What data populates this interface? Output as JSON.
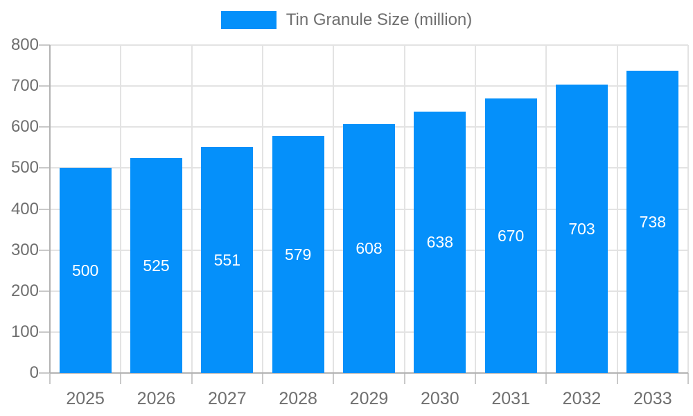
{
  "chart_data": {
    "type": "bar",
    "title": "",
    "legend": {
      "label": "Tin Granule Size (million)",
      "position": "top"
    },
    "categories": [
      "2025",
      "2026",
      "2027",
      "2028",
      "2029",
      "2030",
      "2031",
      "2032",
      "2033"
    ],
    "series": [
      {
        "name": "Tin Granule Size (million)",
        "values": [
          500,
          525,
          551,
          579,
          608,
          638,
          670,
          703,
          738
        ]
      }
    ],
    "xlabel": "",
    "ylabel": "",
    "ylim": [
      0,
      800
    ],
    "yticks": [
      0,
      100,
      200,
      300,
      400,
      500,
      600,
      700,
      800
    ],
    "grid": true,
    "bar_value_labels_shown": true
  },
  "colors": {
    "bar": "#0590fa",
    "bar_label": "#ffffff",
    "axis_text": "#6f6f6f",
    "gridline": "#e3e3e3",
    "axis_border": "#b3b3b3",
    "tick": "#c9c9c9",
    "background": "#ffffff"
  }
}
